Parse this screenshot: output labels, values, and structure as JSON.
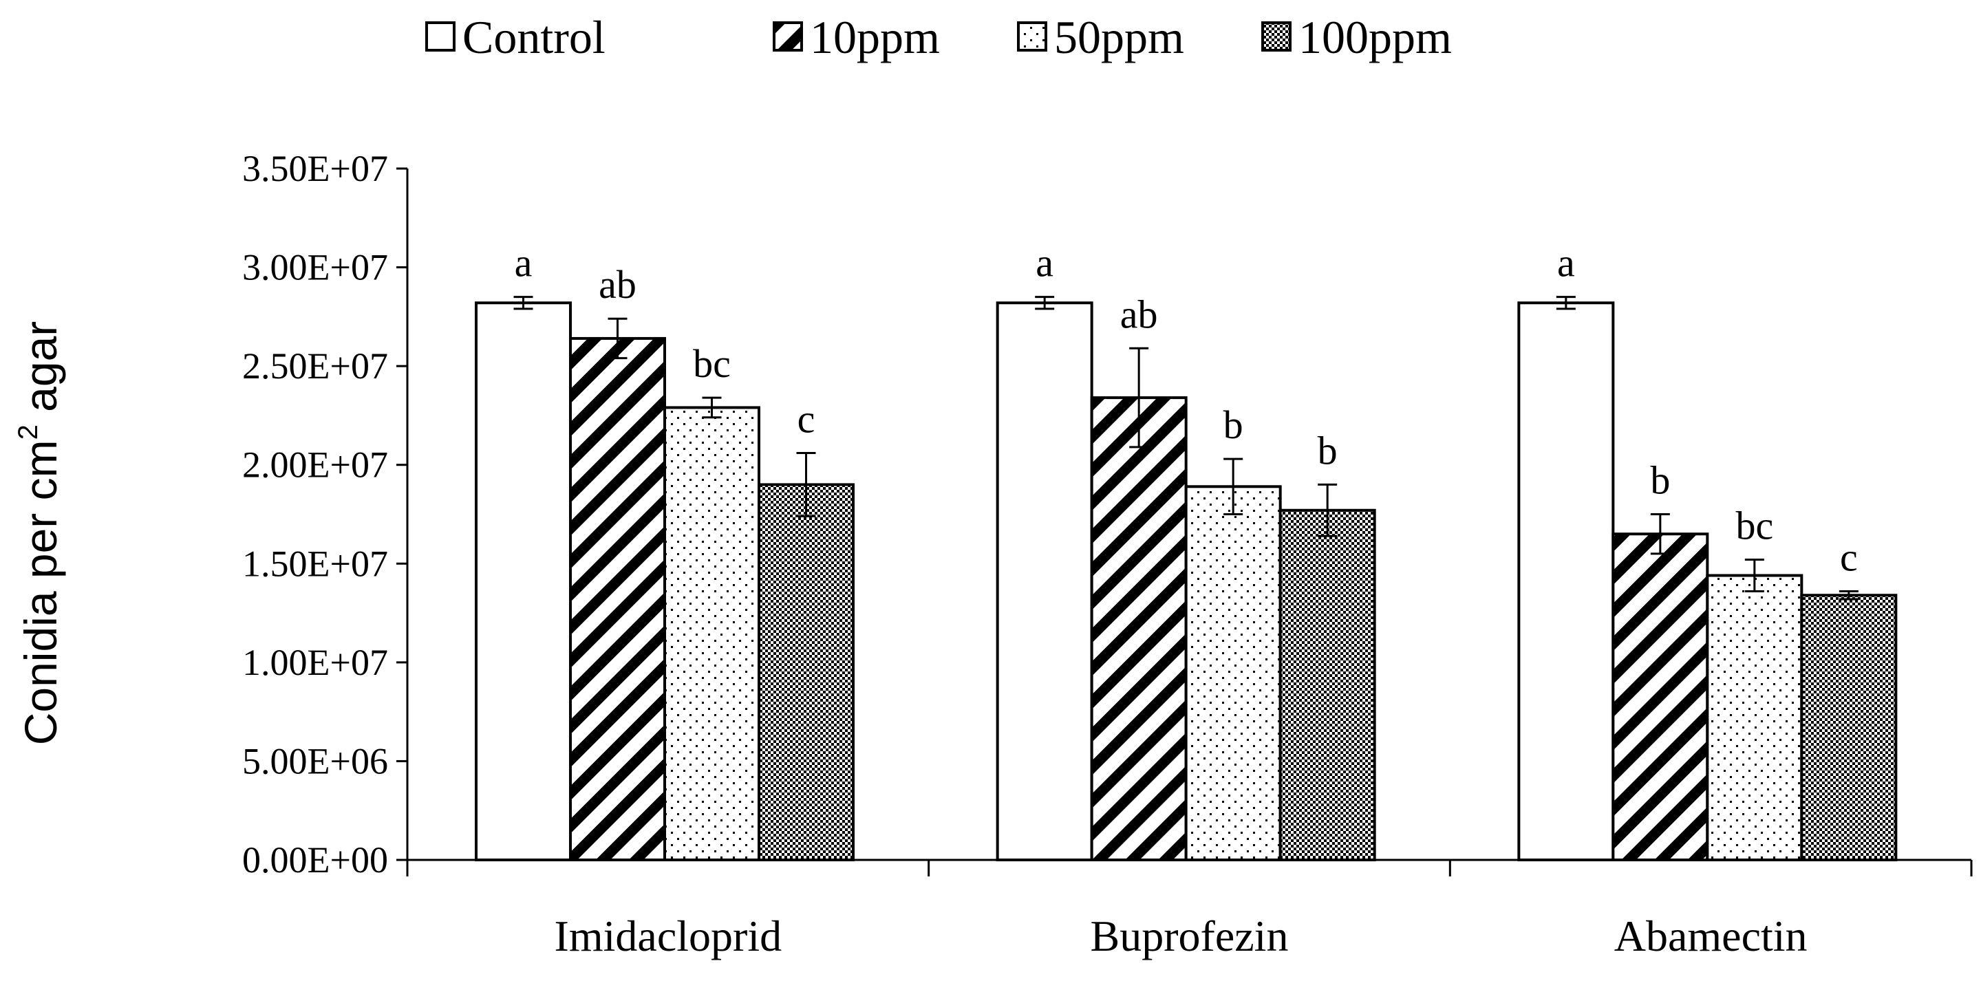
{
  "chart_data": {
    "type": "bar",
    "title": "",
    "xlabel": "",
    "ylabel": "Conidia per cm",
    "ylabel_superscript": "2",
    "ylabel_suffix": " agar",
    "ylim": [
      0,
      35000000
    ],
    "ytick_values": [
      0,
      5000000,
      10000000,
      15000000,
      20000000,
      25000000,
      30000000,
      35000000
    ],
    "ytick_labels": [
      "0.00E+00",
      "5.00E+06",
      "1.00E+07",
      "1.50E+07",
      "2.00E+07",
      "2.50E+07",
      "3.00E+07",
      "3.50E+07"
    ],
    "legend_position": "top-center",
    "grid": false,
    "categories": [
      "Imidacloprid",
      "Buprofezin",
      "Abamectin"
    ],
    "series": [
      {
        "name": "Control",
        "pattern": "white",
        "values": [
          28200000,
          28200000,
          28200000
        ],
        "errors": [
          300000,
          300000,
          300000
        ],
        "labels": [
          "a",
          "a",
          "a"
        ]
      },
      {
        "name": "10ppm",
        "pattern": "diagonal",
        "values": [
          26400000,
          23400000,
          16500000
        ],
        "errors": [
          1000000,
          2500000,
          1000000
        ],
        "labels": [
          "ab",
          "ab",
          "b"
        ]
      },
      {
        "name": "50ppm",
        "pattern": "dotted",
        "values": [
          22900000,
          18900000,
          14400000
        ],
        "errors": [
          500000,
          1400000,
          800000
        ],
        "labels": [
          "bc",
          "b",
          "bc"
        ]
      },
      {
        "name": "100ppm",
        "pattern": "checker",
        "values": [
          19000000,
          17700000,
          13400000
        ],
        "errors": [
          1600000,
          1300000,
          200000
        ],
        "labels": [
          "c",
          "b",
          "c"
        ]
      }
    ]
  }
}
